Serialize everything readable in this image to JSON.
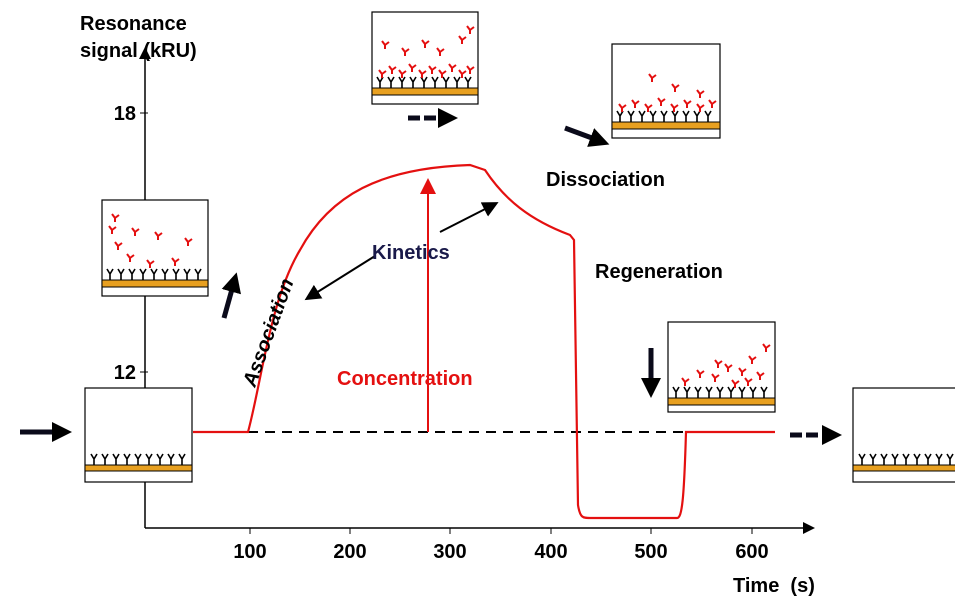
{
  "y_axis": {
    "title": [
      "Resonance",
      "signal (kRU)"
    ],
    "ticks": [
      "18",
      "12"
    ]
  },
  "x_axis": {
    "title": "Time  (s)",
    "ticks": [
      "100",
      "200",
      "300",
      "400",
      "500",
      "600"
    ]
  },
  "labels": {
    "association": "Association",
    "kinetics": "Kinetics",
    "concentration": "Concentration",
    "dissociation": "Dissociation",
    "regeneration": "Regeneration"
  }
}
